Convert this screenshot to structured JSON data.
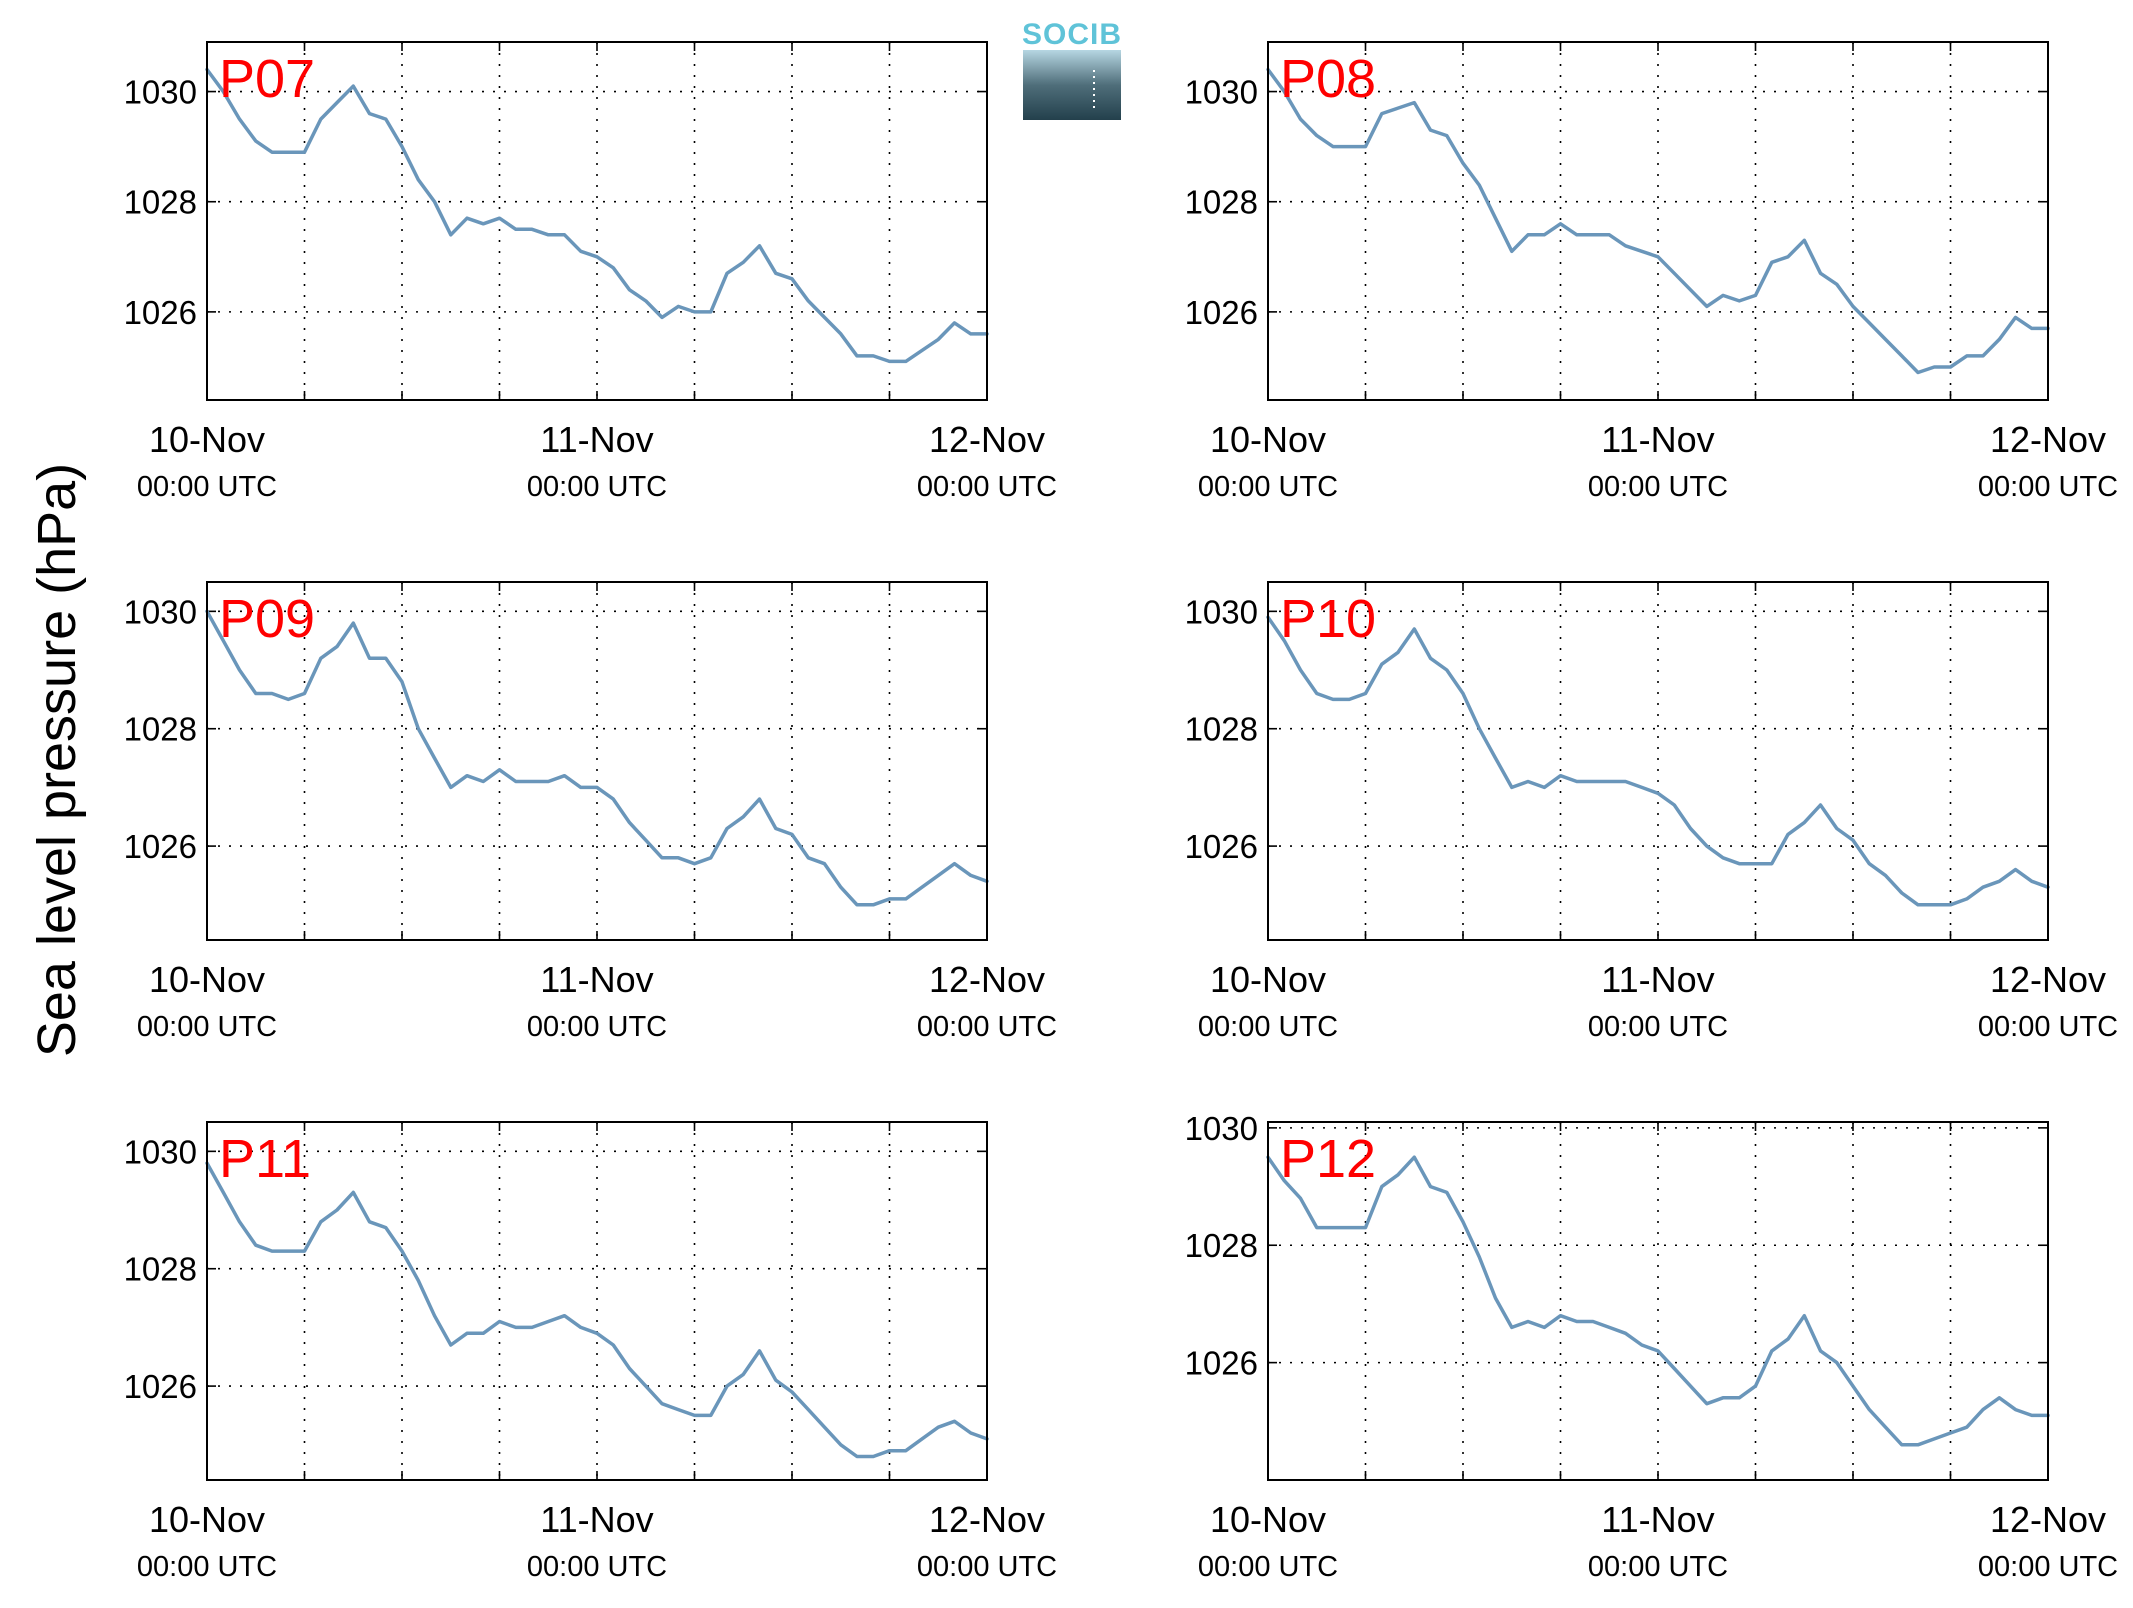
{
  "figure": {
    "ylabel": "Sea level pressure (hPa)",
    "logo_text": "SOCIB"
  },
  "colors": {
    "line": "#6a96ba",
    "panel_label": "#ff0000",
    "grid": "#000000",
    "logo_top": "#5fc3d8",
    "logo_bottom": "#25424e"
  },
  "chart_data": [
    {
      "type": "line",
      "panel_label": "P07",
      "xlabels": [
        [
          "10-Nov",
          "00:00 UTC"
        ],
        [
          "11-Nov",
          "00:00 UTC"
        ],
        [
          "12-Nov",
          "00:00 UTC"
        ]
      ],
      "xlim": [
        0,
        48
      ],
      "xticks_hours": [
        0,
        6,
        12,
        18,
        24,
        30,
        36,
        42,
        48
      ],
      "ylim": [
        1024.4,
        1030.9
      ],
      "yticks": [
        1026,
        1028,
        1030
      ],
      "grid": true,
      "x_hours": [
        0,
        1,
        2,
        3,
        4,
        5,
        6,
        7,
        8,
        9,
        10,
        11,
        12,
        13,
        14,
        15,
        16,
        17,
        18,
        19,
        20,
        21,
        22,
        23,
        24,
        25,
        26,
        27,
        28,
        29,
        30,
        31,
        32,
        33,
        34,
        35,
        36,
        37,
        38,
        39,
        40,
        41,
        42,
        43,
        44,
        45,
        46,
        47,
        48
      ],
      "values": [
        1030.4,
        1030.0,
        1029.5,
        1029.1,
        1028.9,
        1028.9,
        1028.9,
        1029.5,
        1029.8,
        1030.1,
        1029.6,
        1029.5,
        1029.0,
        1028.4,
        1028.0,
        1027.4,
        1027.7,
        1027.6,
        1027.7,
        1027.5,
        1027.5,
        1027.4,
        1027.4,
        1027.1,
        1027.0,
        1026.8,
        1026.4,
        1026.2,
        1025.9,
        1026.1,
        1026.0,
        1026.0,
        1026.7,
        1026.9,
        1027.2,
        1026.7,
        1026.6,
        1026.2,
        1025.9,
        1025.6,
        1025.2,
        1025.2,
        1025.1,
        1025.1,
        1025.3,
        1025.5,
        1025.8,
        1025.6,
        1025.6
      ]
    },
    {
      "type": "line",
      "panel_label": "P08",
      "xlabels": [
        [
          "10-Nov",
          "00:00 UTC"
        ],
        [
          "11-Nov",
          "00:00 UTC"
        ],
        [
          "12-Nov",
          "00:00 UTC"
        ]
      ],
      "xlim": [
        0,
        48
      ],
      "xticks_hours": [
        0,
        6,
        12,
        18,
        24,
        30,
        36,
        42,
        48
      ],
      "ylim": [
        1024.4,
        1030.9
      ],
      "yticks": [
        1026,
        1028,
        1030
      ],
      "grid": true,
      "x_hours": [
        0,
        1,
        2,
        3,
        4,
        5,
        6,
        7,
        8,
        9,
        10,
        11,
        12,
        13,
        14,
        15,
        16,
        17,
        18,
        19,
        20,
        21,
        22,
        23,
        24,
        25,
        26,
        27,
        28,
        29,
        30,
        31,
        32,
        33,
        34,
        35,
        36,
        37,
        38,
        39,
        40,
        41,
        42,
        43,
        44,
        45,
        46,
        47,
        48
      ],
      "values": [
        1030.4,
        1030.0,
        1029.5,
        1029.2,
        1029.0,
        1029.0,
        1029.0,
        1029.6,
        1029.7,
        1029.8,
        1029.3,
        1029.2,
        1028.7,
        1028.3,
        1027.7,
        1027.1,
        1027.4,
        1027.4,
        1027.6,
        1027.4,
        1027.4,
        1027.4,
        1027.2,
        1027.1,
        1027.0,
        1026.7,
        1026.4,
        1026.1,
        1026.3,
        1026.2,
        1026.3,
        1026.9,
        1027.0,
        1027.3,
        1026.7,
        1026.5,
        1026.1,
        1025.8,
        1025.5,
        1025.2,
        1024.9,
        1025.0,
        1025.0,
        1025.2,
        1025.2,
        1025.5,
        1025.9,
        1025.7,
        1025.7
      ]
    },
    {
      "type": "line",
      "panel_label": "P09",
      "xlabels": [
        [
          "10-Nov",
          "00:00 UTC"
        ],
        [
          "11-Nov",
          "00:00 UTC"
        ],
        [
          "12-Nov",
          "00:00 UTC"
        ]
      ],
      "xlim": [
        0,
        48
      ],
      "xticks_hours": [
        0,
        6,
        12,
        18,
        24,
        30,
        36,
        42,
        48
      ],
      "ylim": [
        1024.4,
        1030.5
      ],
      "yticks": [
        1026,
        1028,
        1030
      ],
      "grid": true,
      "x_hours": [
        0,
        1,
        2,
        3,
        4,
        5,
        6,
        7,
        8,
        9,
        10,
        11,
        12,
        13,
        14,
        15,
        16,
        17,
        18,
        19,
        20,
        21,
        22,
        23,
        24,
        25,
        26,
        27,
        28,
        29,
        30,
        31,
        32,
        33,
        34,
        35,
        36,
        37,
        38,
        39,
        40,
        41,
        42,
        43,
        44,
        45,
        46,
        47,
        48
      ],
      "values": [
        1030.0,
        1029.5,
        1029.0,
        1028.6,
        1028.6,
        1028.5,
        1028.6,
        1029.2,
        1029.4,
        1029.8,
        1029.2,
        1029.2,
        1028.8,
        1028.0,
        1027.5,
        1027.0,
        1027.2,
        1027.1,
        1027.3,
        1027.1,
        1027.1,
        1027.1,
        1027.2,
        1027.0,
        1027.0,
        1026.8,
        1026.4,
        1026.1,
        1025.8,
        1025.8,
        1025.7,
        1025.8,
        1026.3,
        1026.5,
        1026.8,
        1026.3,
        1026.2,
        1025.8,
        1025.7,
        1025.3,
        1025.0,
        1025.0,
        1025.1,
        1025.1,
        1025.3,
        1025.5,
        1025.7,
        1025.5,
        1025.4
      ]
    },
    {
      "type": "line",
      "panel_label": "P10",
      "xlabels": [
        [
          "10-Nov",
          "00:00 UTC"
        ],
        [
          "11-Nov",
          "00:00 UTC"
        ],
        [
          "12-Nov",
          "00:00 UTC"
        ]
      ],
      "xlim": [
        0,
        48
      ],
      "xticks_hours": [
        0,
        6,
        12,
        18,
        24,
        30,
        36,
        42,
        48
      ],
      "ylim": [
        1024.4,
        1030.5
      ],
      "yticks": [
        1026,
        1028,
        1030
      ],
      "grid": true,
      "x_hours": [
        0,
        1,
        2,
        3,
        4,
        5,
        6,
        7,
        8,
        9,
        10,
        11,
        12,
        13,
        14,
        15,
        16,
        17,
        18,
        19,
        20,
        21,
        22,
        23,
        24,
        25,
        26,
        27,
        28,
        29,
        30,
        31,
        32,
        33,
        34,
        35,
        36,
        37,
        38,
        39,
        40,
        41,
        42,
        43,
        44,
        45,
        46,
        47,
        48
      ],
      "values": [
        1029.9,
        1029.5,
        1029.0,
        1028.6,
        1028.5,
        1028.5,
        1028.6,
        1029.1,
        1029.3,
        1029.7,
        1029.2,
        1029.0,
        1028.6,
        1028.0,
        1027.5,
        1027.0,
        1027.1,
        1027.0,
        1027.2,
        1027.1,
        1027.1,
        1027.1,
        1027.1,
        1027.0,
        1026.9,
        1026.7,
        1026.3,
        1026.0,
        1025.8,
        1025.7,
        1025.7,
        1025.7,
        1026.2,
        1026.4,
        1026.7,
        1026.3,
        1026.1,
        1025.7,
        1025.5,
        1025.2,
        1025.0,
        1025.0,
        1025.0,
        1025.1,
        1025.3,
        1025.4,
        1025.6,
        1025.4,
        1025.3
      ]
    },
    {
      "type": "line",
      "panel_label": "P11",
      "xlabels": [
        [
          "10-Nov",
          "00:00 UTC"
        ],
        [
          "11-Nov",
          "00:00 UTC"
        ],
        [
          "12-Nov",
          "00:00 UTC"
        ]
      ],
      "xlim": [
        0,
        48
      ],
      "xticks_hours": [
        0,
        6,
        12,
        18,
        24,
        30,
        36,
        42,
        48
      ],
      "ylim": [
        1024.4,
        1030.5
      ],
      "yticks": [
        1026,
        1028,
        1030
      ],
      "grid": true,
      "x_hours": [
        0,
        1,
        2,
        3,
        4,
        5,
        6,
        7,
        8,
        9,
        10,
        11,
        12,
        13,
        14,
        15,
        16,
        17,
        18,
        19,
        20,
        21,
        22,
        23,
        24,
        25,
        26,
        27,
        28,
        29,
        30,
        31,
        32,
        33,
        34,
        35,
        36,
        37,
        38,
        39,
        40,
        41,
        42,
        43,
        44,
        45,
        46,
        47,
        48
      ],
      "values": [
        1029.8,
        1029.3,
        1028.8,
        1028.4,
        1028.3,
        1028.3,
        1028.3,
        1028.8,
        1029.0,
        1029.3,
        1028.8,
        1028.7,
        1028.3,
        1027.8,
        1027.2,
        1026.7,
        1026.9,
        1026.9,
        1027.1,
        1027.0,
        1027.0,
        1027.1,
        1027.2,
        1027.0,
        1026.9,
        1026.7,
        1026.3,
        1026.0,
        1025.7,
        1025.6,
        1025.5,
        1025.5,
        1026.0,
        1026.2,
        1026.6,
        1026.1,
        1025.9,
        1025.6,
        1025.3,
        1025.0,
        1024.8,
        1024.8,
        1024.9,
        1024.9,
        1025.1,
        1025.3,
        1025.4,
        1025.2,
        1025.1
      ]
    },
    {
      "type": "line",
      "panel_label": "P12",
      "xlabels": [
        [
          "10-Nov",
          "00:00 UTC"
        ],
        [
          "11-Nov",
          "00:00 UTC"
        ],
        [
          "12-Nov",
          "00:00 UTC"
        ]
      ],
      "xlim": [
        0,
        48
      ],
      "xticks_hours": [
        0,
        6,
        12,
        18,
        24,
        30,
        36,
        42,
        48
      ],
      "ylim": [
        1024.0,
        1030.1
      ],
      "yticks": [
        1026,
        1028,
        1030
      ],
      "grid": true,
      "x_hours": [
        0,
        1,
        2,
        3,
        4,
        5,
        6,
        7,
        8,
        9,
        10,
        11,
        12,
        13,
        14,
        15,
        16,
        17,
        18,
        19,
        20,
        21,
        22,
        23,
        24,
        25,
        26,
        27,
        28,
        29,
        30,
        31,
        32,
        33,
        34,
        35,
        36,
        37,
        38,
        39,
        40,
        41,
        42,
        43,
        44,
        45,
        46,
        47,
        48
      ],
      "values": [
        1029.5,
        1029.1,
        1028.8,
        1028.3,
        1028.3,
        1028.3,
        1028.3,
        1029.0,
        1029.2,
        1029.5,
        1029.0,
        1028.9,
        1028.4,
        1027.8,
        1027.1,
        1026.6,
        1026.7,
        1026.6,
        1026.8,
        1026.7,
        1026.7,
        1026.6,
        1026.5,
        1026.3,
        1026.2,
        1025.9,
        1025.6,
        1025.3,
        1025.4,
        1025.4,
        1025.6,
        1026.2,
        1026.4,
        1026.8,
        1026.2,
        1026.0,
        1025.6,
        1025.2,
        1024.9,
        1024.6,
        1024.6,
        1024.7,
        1024.8,
        1024.9,
        1025.2,
        1025.4,
        1025.2,
        1025.1,
        1025.1
      ]
    }
  ]
}
